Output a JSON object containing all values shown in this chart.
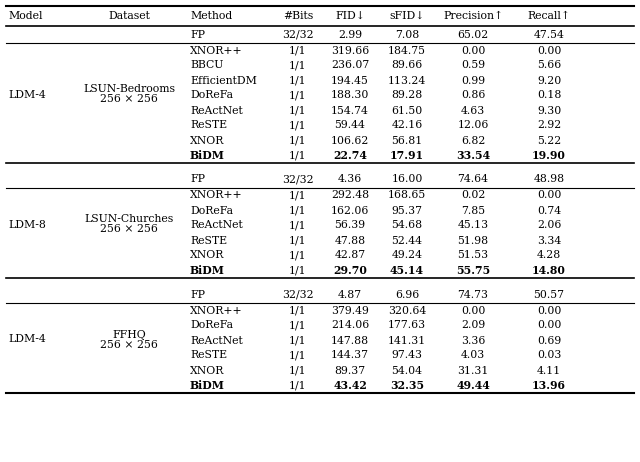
{
  "headers": [
    "Model",
    "Dataset",
    "Method",
    "#Bits",
    "FID↓",
    "sFID↓",
    "Precision↑",
    "Recall↑"
  ],
  "sections": [
    {
      "model": "LDM-4",
      "dataset_line1": "LSUN-Bedrooms",
      "dataset_line2": "256 × 256",
      "rows": [
        {
          "method": "FP",
          "bits": "32/32",
          "fid": "2.99",
          "sfid": "7.08",
          "precision": "65.02",
          "recall": "47.54",
          "fp": true,
          "bold": false
        },
        {
          "method": "XNOR++",
          "bits": "1/1",
          "fid": "319.66",
          "sfid": "184.75",
          "precision": "0.00",
          "recall": "0.00",
          "fp": false,
          "bold": false
        },
        {
          "method": "BBCU",
          "bits": "1/1",
          "fid": "236.07",
          "sfid": "89.66",
          "precision": "0.59",
          "recall": "5.66",
          "fp": false,
          "bold": false
        },
        {
          "method": "EfficientDM",
          "bits": "1/1",
          "fid": "194.45",
          "sfid": "113.24",
          "precision": "0.99",
          "recall": "9.20",
          "fp": false,
          "bold": false
        },
        {
          "method": "DoReFa",
          "bits": "1/1",
          "fid": "188.30",
          "sfid": "89.28",
          "precision": "0.86",
          "recall": "0.18",
          "fp": false,
          "bold": false
        },
        {
          "method": "ReActNet",
          "bits": "1/1",
          "fid": "154.74",
          "sfid": "61.50",
          "precision": "4.63",
          "recall": "9.30",
          "fp": false,
          "bold": false
        },
        {
          "method": "ReSTE",
          "bits": "1/1",
          "fid": "59.44",
          "sfid": "42.16",
          "precision": "12.06",
          "recall": "2.92",
          "fp": false,
          "bold": false
        },
        {
          "method": "XNOR",
          "bits": "1/1",
          "fid": "106.62",
          "sfid": "56.81",
          "precision": "6.82",
          "recall": "5.22",
          "fp": false,
          "bold": false
        },
        {
          "method": "BiDM",
          "bits": "1/1",
          "fid": "22.74",
          "sfid": "17.91",
          "precision": "33.54",
          "recall": "19.90",
          "fp": false,
          "bold": true
        }
      ]
    },
    {
      "model": "LDM-8",
      "dataset_line1": "LSUN-Churches",
      "dataset_line2": "256 × 256",
      "rows": [
        {
          "method": "FP",
          "bits": "32/32",
          "fid": "4.36",
          "sfid": "16.00",
          "precision": "74.64",
          "recall": "48.98",
          "fp": true,
          "bold": false
        },
        {
          "method": "XNOR++",
          "bits": "1/1",
          "fid": "292.48",
          "sfid": "168.65",
          "precision": "0.02",
          "recall": "0.00",
          "fp": false,
          "bold": false
        },
        {
          "method": "DoReFa",
          "bits": "1/1",
          "fid": "162.06",
          "sfid": "95.37",
          "precision": "7.85",
          "recall": "0.74",
          "fp": false,
          "bold": false
        },
        {
          "method": "ReActNet",
          "bits": "1/1",
          "fid": "56.39",
          "sfid": "54.68",
          "precision": "45.13",
          "recall": "2.06",
          "fp": false,
          "bold": false
        },
        {
          "method": "ReSTE",
          "bits": "1/1",
          "fid": "47.88",
          "sfid": "52.44",
          "precision": "51.98",
          "recall": "3.34",
          "fp": false,
          "bold": false
        },
        {
          "method": "XNOR",
          "bits": "1/1",
          "fid": "42.87",
          "sfid": "49.24",
          "precision": "51.53",
          "recall": "4.28",
          "fp": false,
          "bold": false
        },
        {
          "method": "BiDM",
          "bits": "1/1",
          "fid": "29.70",
          "sfid": "45.14",
          "precision": "55.75",
          "recall": "14.80",
          "fp": false,
          "bold": true
        }
      ]
    },
    {
      "model": "LDM-4",
      "dataset_line1": "FFHQ",
      "dataset_line2": "256 × 256",
      "rows": [
        {
          "method": "FP",
          "bits": "32/32",
          "fid": "4.87",
          "sfid": "6.96",
          "precision": "74.73",
          "recall": "50.57",
          "fp": true,
          "bold": false
        },
        {
          "method": "XNOR++",
          "bits": "1/1",
          "fid": "379.49",
          "sfid": "320.64",
          "precision": "0.00",
          "recall": "0.00",
          "fp": false,
          "bold": false
        },
        {
          "method": "DoReFa",
          "bits": "1/1",
          "fid": "214.06",
          "sfid": "177.63",
          "precision": "2.09",
          "recall": "0.00",
          "fp": false,
          "bold": false
        },
        {
          "method": "ReActNet",
          "bits": "1/1",
          "fid": "147.88",
          "sfid": "141.31",
          "precision": "3.36",
          "recall": "0.69",
          "fp": false,
          "bold": false
        },
        {
          "method": "ReSTE",
          "bits": "1/1",
          "fid": "144.37",
          "sfid": "97.43",
          "precision": "4.03",
          "recall": "0.03",
          "fp": false,
          "bold": false
        },
        {
          "method": "XNOR",
          "bits": "1/1",
          "fid": "89.37",
          "sfid": "54.04",
          "precision": "31.31",
          "recall": "4.11",
          "fp": false,
          "bold": false
        },
        {
          "method": "BiDM",
          "bits": "1/1",
          "fid": "43.42",
          "sfid": "32.35",
          "precision": "49.44",
          "recall": "13.96",
          "fp": false,
          "bold": true
        }
      ]
    }
  ],
  "font_size": 7.8,
  "header_font_size": 7.8,
  "bg_color": "#ffffff"
}
